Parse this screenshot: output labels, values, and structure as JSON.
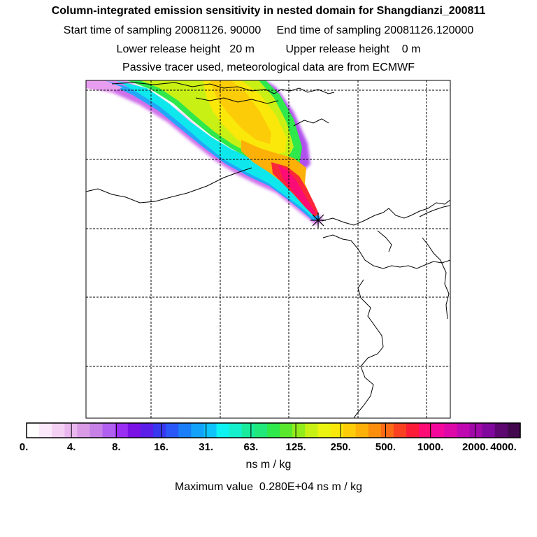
{
  "header": {
    "title": "Column-integrated emission sensitivity in nested domain for Shangdianzi_200811",
    "line2": "Start time of sampling 20081126. 90000     End time of sampling 20081126.120000",
    "line3": "Lower release height   20 m          Upper release height    0 m",
    "line4": "Passive tracer used, meteorological data are from ECMWF"
  },
  "colorbar": {
    "labels": [
      "0.",
      "4.",
      "8.",
      "16.",
      "31.",
      "63.",
      "125.",
      "250.",
      "500.",
      "1000.",
      "2000.",
      "4000."
    ],
    "colors": [
      "#ffffff",
      "#fbe8fb",
      "#f4d0f4",
      "#eab6ee",
      "#d99be6",
      "#c680e6",
      "#b060ee",
      "#9a2ef2",
      "#7a12e6",
      "#5a1ee8",
      "#3838f0",
      "#2a58f8",
      "#1a7ef8",
      "#12a2fa",
      "#0ec4fa",
      "#0ef2f2",
      "#14f0cc",
      "#18ec9c",
      "#20e87a",
      "#2ee84c",
      "#5ae82c",
      "#92ec1c",
      "#c8f014",
      "#eaf410",
      "#fae80a",
      "#fccc08",
      "#fcb008",
      "#fc8e0e",
      "#fc6a16",
      "#fa4020",
      "#fc1c38",
      "#fc0c74",
      "#f4089c",
      "#dc08a8",
      "#c008b0",
      "#a008a8",
      "#80089c",
      "#5c0870",
      "#44084e"
    ],
    "unit_label": "ns m / kg"
  },
  "max_value": "Maximum value  0.280E+04 ns m / kg",
  "legend_colors": {
    "release_site_marker": "#000000",
    "grid": "#000000",
    "coast": "#000000"
  }
}
